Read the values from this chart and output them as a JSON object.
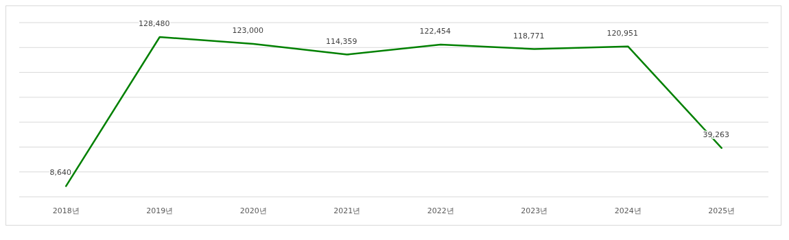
{
  "chart_data": {
    "type": "line",
    "categories": [
      "2018년",
      "2019년",
      "2020년",
      "2021년",
      "2022년",
      "2023년",
      "2024년",
      "2025년"
    ],
    "series": [
      {
        "color": "#008000",
        "values": [
          8640,
          128480,
          123000,
          114359,
          122454,
          118771,
          120951,
          39263
        ],
        "value_labels": [
          "8,640",
          "128,480",
          "123,000",
          "114,359",
          "122,454",
          "118,771",
          "120,951",
          "39,263"
        ]
      }
    ],
    "tick_labels": "x",
    "grid": "y",
    "marker": "none",
    "line_style": "solid"
  }
}
